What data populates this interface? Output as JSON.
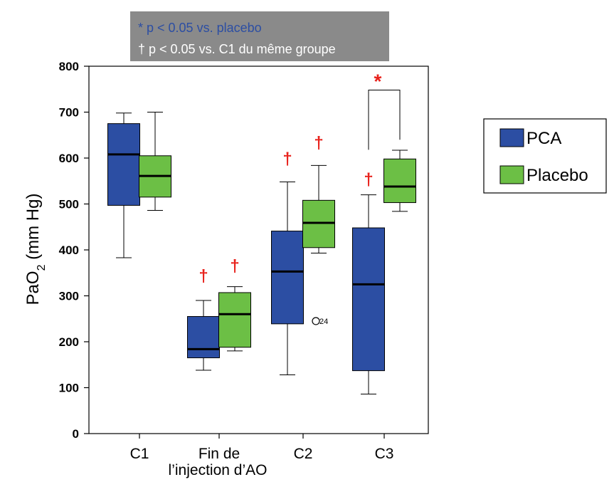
{
  "chart_data": {
    "type": "box",
    "categories": [
      "C1",
      "Fin de",
      "C2",
      "C3"
    ],
    "category_sublabel": "l’injection d’AO",
    "ylabel": "PaO2 (mm Hg)",
    "ylabel_main": "PaO",
    "ylabel_sub": "2",
    "ylabel_rest": " (mm Hg)",
    "ylim": [
      0,
      800
    ],
    "yticks": [
      0,
      100,
      200,
      300,
      400,
      500,
      600,
      700,
      800
    ],
    "legend_position": "right",
    "series": [
      {
        "name": "PCA",
        "color": "#2c4ea3",
        "boxes": [
          {
            "min": 383,
            "q1": 497,
            "median": 608,
            "q3": 675,
            "max": 698
          },
          {
            "min": 138,
            "q1": 165,
            "median": 184,
            "q3": 255,
            "max": 290
          },
          {
            "min": 128,
            "q1": 239,
            "median": 353,
            "q3": 441,
            "max": 548
          },
          {
            "min": 86,
            "q1": 137,
            "median": 325,
            "q3": 448,
            "max": 520
          }
        ]
      },
      {
        "name": "Placebo",
        "color": "#6cbf45",
        "boxes": [
          {
            "min": 486,
            "q1": 515,
            "median": 561,
            "q3": 605,
            "max": 700
          },
          {
            "min": 180,
            "q1": 188,
            "median": 260,
            "q3": 307,
            "max": 320
          },
          {
            "min": 393,
            "q1": 405,
            "median": 459,
            "q3": 508,
            "max": 584
          },
          {
            "min": 484,
            "q1": 503,
            "median": 538,
            "q3": 598,
            "max": 617
          }
        ]
      }
    ],
    "outliers": [
      {
        "series": "Placebo",
        "category": "C2",
        "value": 245,
        "label": "24"
      }
    ],
    "annotations": {
      "dagger_symbol": "†",
      "star_symbol": "*",
      "daggers": [
        {
          "category": "Fin de",
          "series": "PCA",
          "value": 345
        },
        {
          "category": "Fin de",
          "series": "Placebo",
          "value": 367
        },
        {
          "category": "C2",
          "series": "PCA",
          "value": 600
        },
        {
          "category": "C2",
          "series": "Placebo",
          "value": 635
        },
        {
          "category": "C3",
          "series": "PCA",
          "value": 555
        }
      ],
      "star": {
        "category": "C3",
        "value": 768
      },
      "bracket": {
        "category": "C3",
        "top": 748,
        "left_bottom": 618,
        "right_bottom": 640
      }
    },
    "notes": {
      "line1": "* p < 0.05 vs. placebo",
      "line2": "† p < 0.05 vs. C1 du même groupe",
      "line1_color": "#2c4ea3",
      "line2_color": "#ffffff",
      "background": "#8a8a8a"
    }
  }
}
